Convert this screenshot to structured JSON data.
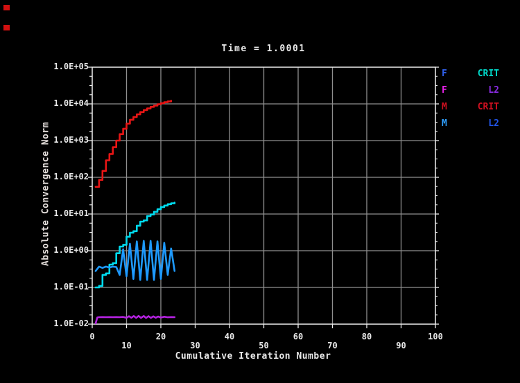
{
  "window": {
    "background": "#000000",
    "corner_markers": [
      {
        "x": 5,
        "y": 7,
        "w": 9,
        "h": 8,
        "color": "#d01010"
      },
      {
        "x": 5,
        "y": 36,
        "w": 9,
        "h": 8,
        "color": "#d01010"
      }
    ]
  },
  "chart_data": {
    "type": "line",
    "title": "Time = 1.0001",
    "xlabel": "Cumulative Iteration Number",
    "ylabel": "Absolute Convergence Norm",
    "grid": true,
    "frame_color": "#efefef",
    "grid_color": "#8f8f8f",
    "text_color": "#e8e8e8",
    "x_axis": {
      "min": 0,
      "max": 100,
      "ticks": [
        0,
        10,
        20,
        30,
        40,
        50,
        60,
        70,
        80,
        90,
        100
      ]
    },
    "y_axis": {
      "scale": "log10",
      "min": 0.01,
      "max": 100000,
      "tick_labels": [
        "1.0E+05",
        "1.0E+04",
        "1.0E+03",
        "1.0E+02",
        "1.0E+01",
        "1.0E+00",
        "1.0E-01",
        "1.0E-02"
      ],
      "tick_values": [
        100000,
        10000,
        1000,
        100,
        10,
        1,
        0.1,
        0.01
      ],
      "minor_ticks_per_decade": 3
    },
    "legend": {
      "position": "right",
      "entries": [
        {
          "var": "F",
          "norm": "CRIT",
          "var_color": "#2f5fe8",
          "norm_color": "#00d8c8"
        },
        {
          "var": "F",
          "norm": "L2",
          "var_color": "#e822e8",
          "norm_color": "#8a2be2"
        },
        {
          "var": "M",
          "norm": "CRIT",
          "var_color": "#d01020",
          "norm_color": "#d01020"
        },
        {
          "var": "M",
          "norm": "L2",
          "var_color": "#2f9fff",
          "norm_color": "#2255e8"
        }
      ]
    },
    "series": [
      {
        "name": "M CRIT",
        "color": "#e81515",
        "style": "step",
        "points": [
          [
            1,
            55
          ],
          [
            2,
            85
          ],
          [
            3,
            150
          ],
          [
            4,
            290
          ],
          [
            5,
            430
          ],
          [
            6,
            660
          ],
          [
            7,
            1000
          ],
          [
            8,
            1500
          ],
          [
            9,
            2100
          ],
          [
            10,
            2900
          ],
          [
            11,
            3700
          ],
          [
            12,
            4400
          ],
          [
            13,
            5200
          ],
          [
            14,
            6000
          ],
          [
            15,
            6800
          ],
          [
            16,
            7500
          ],
          [
            17,
            8300
          ],
          [
            18,
            9000
          ],
          [
            19,
            9800
          ],
          [
            20,
            10500
          ],
          [
            21,
            11100
          ],
          [
            22,
            11700
          ],
          [
            23,
            12200
          ]
        ]
      },
      {
        "name": "F CRIT",
        "color": "#00dbee",
        "style": "step",
        "points": [
          [
            1,
            0.1
          ],
          [
            2,
            0.11
          ],
          [
            3,
            0.22
          ],
          [
            4,
            0.24
          ],
          [
            5,
            0.42
          ],
          [
            6,
            0.46
          ],
          [
            7,
            0.85
          ],
          [
            8,
            1.3
          ],
          [
            9,
            1.45
          ],
          [
            10,
            2.4
          ],
          [
            11,
            3.1
          ],
          [
            12,
            3.4
          ],
          [
            13,
            4.8
          ],
          [
            14,
            6.2
          ],
          [
            15,
            6.7
          ],
          [
            16,
            8.8
          ],
          [
            17,
            9.7
          ],
          [
            18,
            11.5
          ],
          [
            19,
            13.5
          ],
          [
            20,
            15.5
          ],
          [
            21,
            17
          ],
          [
            22,
            18.5
          ],
          [
            23,
            19.5
          ],
          [
            24,
            20.5
          ]
        ]
      },
      {
        "name": "F L2",
        "color": "#b422e0",
        "style": "line",
        "points": [
          [
            1,
            0.0105
          ],
          [
            1.5,
            0.0152
          ],
          [
            2,
            0.0155
          ],
          [
            3,
            0.0156
          ],
          [
            4,
            0.0155
          ],
          [
            5,
            0.0156
          ],
          [
            6,
            0.0155
          ],
          [
            7,
            0.0156
          ],
          [
            8,
            0.0155
          ],
          [
            9,
            0.0157
          ],
          [
            10,
            0.0149
          ],
          [
            10.7,
            0.0164
          ],
          [
            11.4,
            0.0149
          ],
          [
            12.1,
            0.0166
          ],
          [
            12.8,
            0.0148
          ],
          [
            13.5,
            0.0167
          ],
          [
            14.2,
            0.0148
          ],
          [
            15,
            0.0166
          ],
          [
            15.7,
            0.0147
          ],
          [
            16.4,
            0.0165
          ],
          [
            17.1,
            0.0148
          ],
          [
            17.8,
            0.0163
          ],
          [
            18.5,
            0.0149
          ],
          [
            19.2,
            0.0161
          ],
          [
            20,
            0.0151
          ],
          [
            21,
            0.0159
          ],
          [
            22,
            0.0154
          ],
          [
            23,
            0.0156
          ],
          [
            24,
            0.0155
          ]
        ]
      },
      {
        "name": "M L2",
        "color": "#1e9aff",
        "style": "line",
        "points": [
          [
            1,
            0.28
          ],
          [
            2,
            0.37
          ],
          [
            3,
            0.34
          ],
          [
            4,
            0.37
          ],
          [
            5,
            0.35
          ],
          [
            6,
            0.37
          ],
          [
            7,
            0.36
          ],
          [
            8,
            0.22
          ],
          [
            9,
            1.1
          ],
          [
            10,
            0.2
          ],
          [
            11,
            1.55
          ],
          [
            12,
            0.17
          ],
          [
            13,
            1.8
          ],
          [
            14,
            0.16
          ],
          [
            15,
            1.85
          ],
          [
            16,
            0.16
          ],
          [
            17,
            1.85
          ],
          [
            18,
            0.16
          ],
          [
            19,
            1.8
          ],
          [
            20,
            0.17
          ],
          [
            21,
            1.65
          ],
          [
            22,
            0.22
          ],
          [
            23,
            1.15
          ],
          [
            24,
            0.28
          ]
        ]
      }
    ]
  }
}
